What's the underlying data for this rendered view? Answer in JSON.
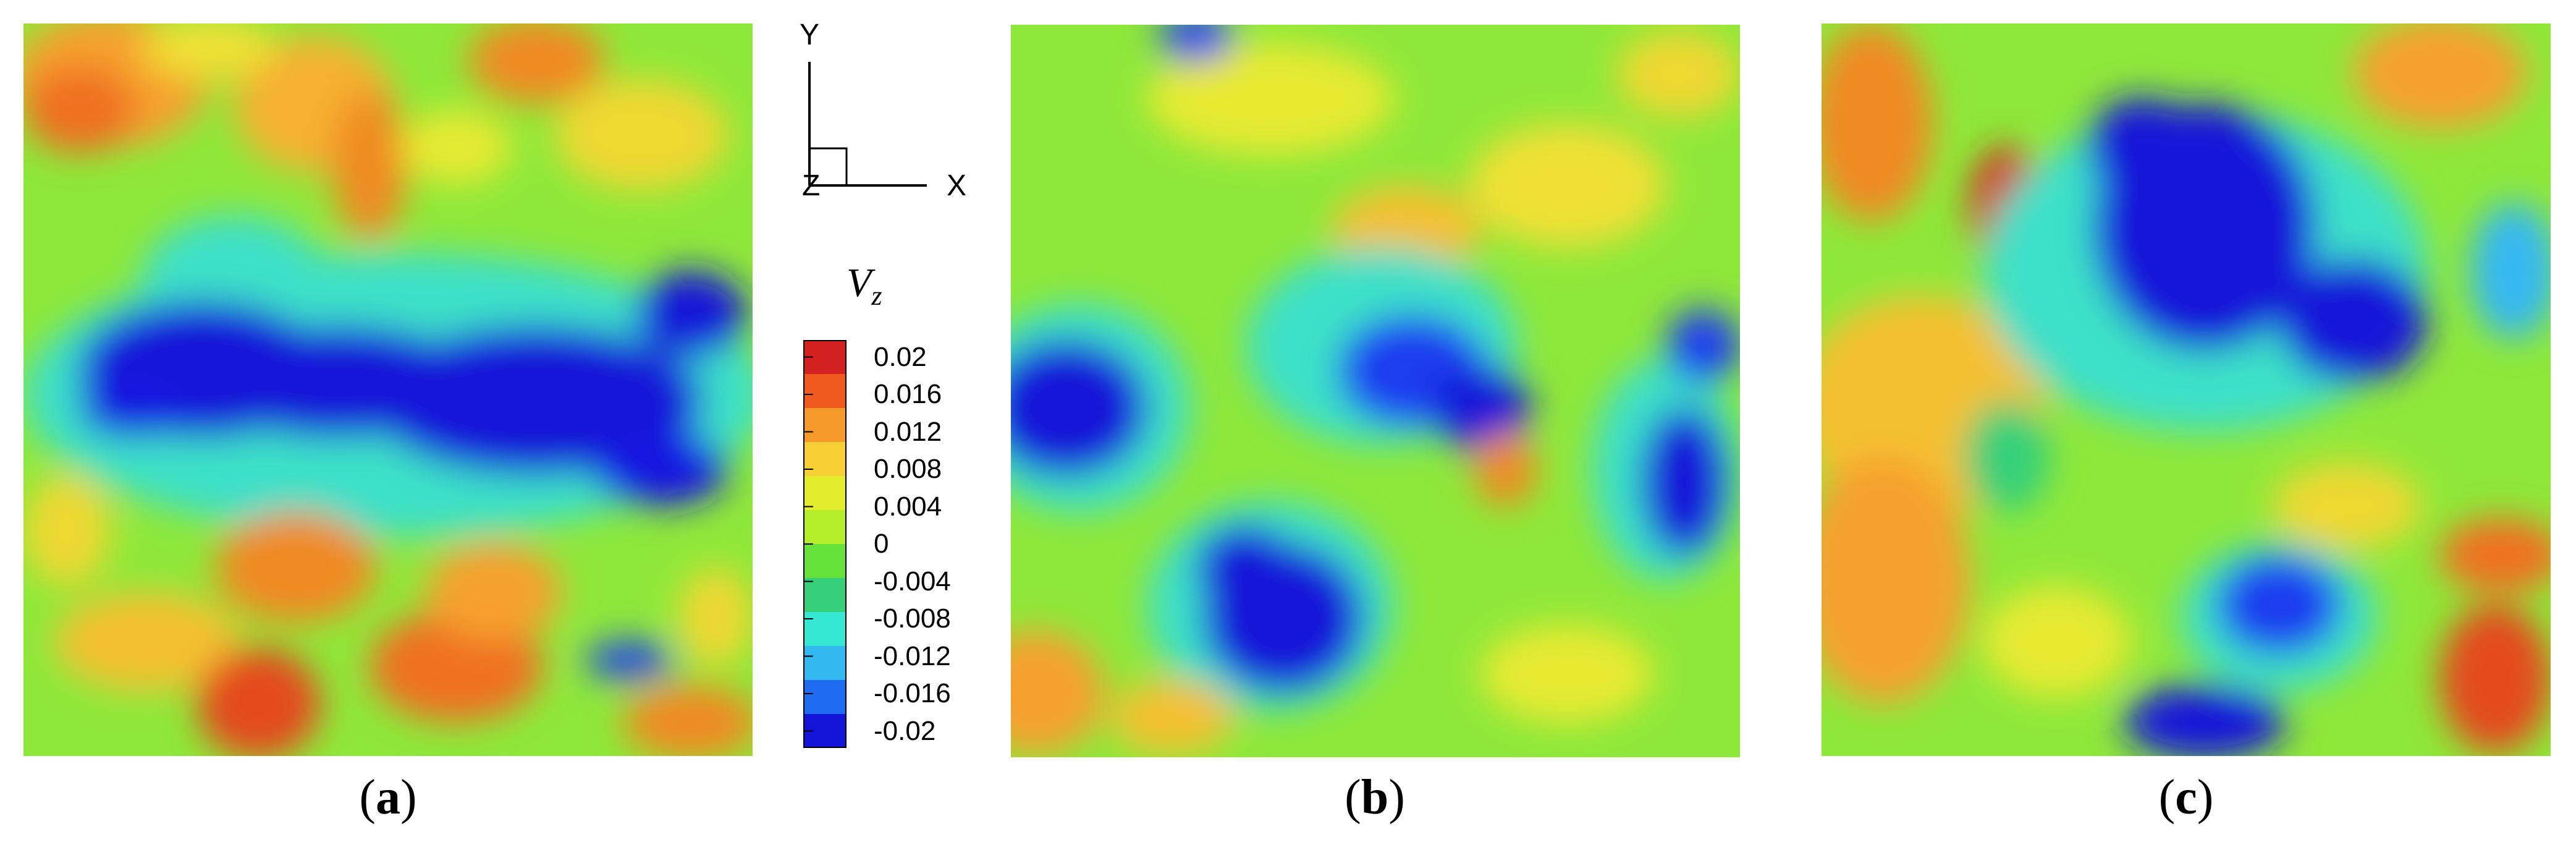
{
  "panels": [
    {
      "id": "a",
      "caption_letter": "a",
      "field": "Vz contour slice"
    },
    {
      "id": "b",
      "caption_letter": "b",
      "field": "Vz contour slice"
    },
    {
      "id": "c",
      "caption_letter": "c",
      "field": "Vz contour slice"
    }
  ],
  "axis_triad": {
    "y_label": "Y",
    "x_label": "X",
    "z_label": "Z"
  },
  "legend": {
    "variable": "V",
    "subscript": "z",
    "levels": [
      "0.02",
      "0.016",
      "0.012",
      "0.008",
      "0.004",
      "0",
      "-0.004",
      "-0.008",
      "-0.012",
      "-0.016",
      "-0.02"
    ],
    "colors": [
      "#d42020",
      "#f05a1c",
      "#f59a2a",
      "#f6cf34",
      "#e4ec2e",
      "#b4ee2a",
      "#66e23a",
      "#36d07a",
      "#36e8d4",
      "#34b8f2",
      "#1e6cf0",
      "#1414d8"
    ]
  }
}
